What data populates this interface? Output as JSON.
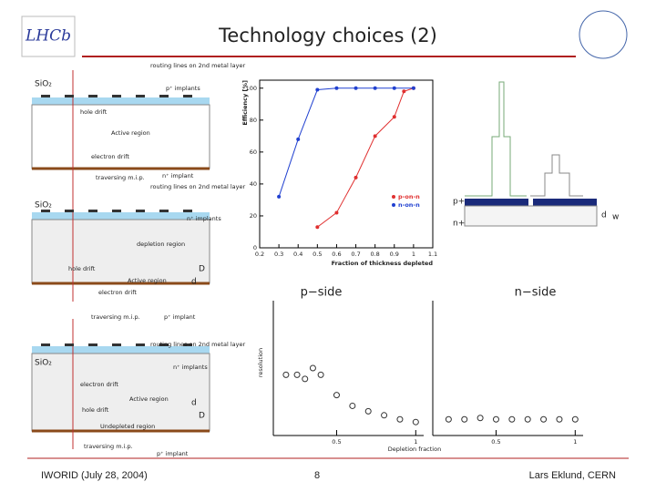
{
  "header": {
    "title": "Technology choices (2)",
    "logo": "LHCb"
  },
  "footer": {
    "left": "IWORID (July 28, 2004)",
    "center": "8",
    "right": "Lars Eklund, CERN"
  },
  "diagrams": [
    {
      "labels": [
        "routing lines on 2nd metal layer",
        "SiO₂",
        "p⁺ implants",
        "hole drift",
        "Active region",
        "electron drift",
        "traversing m.i.p.",
        "n⁺ implant"
      ]
    },
    {
      "labels": [
        "routing lines on 2nd metal layer",
        "SiO₂",
        "n⁺ implants",
        "depletion region",
        "hole drift",
        "Active region",
        "electron drift",
        "traversing m.i.p.",
        "p⁺ implant",
        "D",
        "d"
      ]
    },
    {
      "labels": [
        "routing lines on 2nd metal layer",
        "SiO₂",
        "n⁺ implants",
        "electron drift",
        "Active region",
        "hole drift",
        "Undepleted region",
        "traversing m.i.p.",
        "p⁺ implant",
        "d",
        "D"
      ]
    }
  ],
  "efficiency_chart": {
    "type": "line",
    "x_label": "Fraction of thickness depleted",
    "y_label": "Efficiency [%]",
    "xlim": [
      0.2,
      1.1
    ],
    "xticks": [
      0.2,
      0.3,
      0.4,
      0.5,
      0.6,
      0.7,
      0.8,
      0.9,
      1,
      1.1
    ],
    "ylim": [
      0,
      105
    ],
    "yticks": [
      0,
      20,
      40,
      60,
      80,
      100
    ],
    "series": [
      {
        "name": "p-on-n",
        "color": "#e03030",
        "x": [
          0.5,
          0.6,
          0.7,
          0.8,
          0.9,
          0.95,
          1.0
        ],
        "values": [
          13,
          22,
          44,
          70,
          82,
          98,
          100
        ]
      },
      {
        "name": "n-on-n",
        "color": "#2040d0",
        "x": [
          0.3,
          0.4,
          0.5,
          0.6,
          0.7,
          0.8,
          0.9,
          1.0
        ],
        "values": [
          32,
          68,
          99,
          100,
          100,
          100,
          100,
          100
        ]
      }
    ]
  },
  "detector_sketch": {
    "labels": [
      "p+",
      "n+",
      "d",
      "w"
    ]
  },
  "resolution_chart": {
    "type": "scatter",
    "y_label": "resolution",
    "x_label": "Depletion fraction",
    "panels": [
      {
        "title": "p−side",
        "xlim": [
          0.1,
          1.05
        ],
        "xticks": [
          0.5,
          1
        ],
        "ylim": [
          0,
          1
        ],
        "x": [
          0.18,
          0.25,
          0.3,
          0.35,
          0.4,
          0.5,
          0.6,
          0.7,
          0.8,
          0.9,
          1.0
        ],
        "values": [
          0.45,
          0.45,
          0.42,
          0.5,
          0.45,
          0.3,
          0.22,
          0.18,
          0.15,
          0.12,
          0.1
        ]
      },
      {
        "title": "n−side",
        "xlim": [
          0.1,
          1.05
        ],
        "xticks": [
          0.5,
          1
        ],
        "ylim": [
          0,
          1
        ],
        "x": [
          0.2,
          0.3,
          0.4,
          0.5,
          0.6,
          0.7,
          0.8,
          0.9,
          1.0
        ],
        "values": [
          0.12,
          0.12,
          0.13,
          0.12,
          0.12,
          0.12,
          0.12,
          0.12,
          0.12
        ]
      }
    ]
  }
}
